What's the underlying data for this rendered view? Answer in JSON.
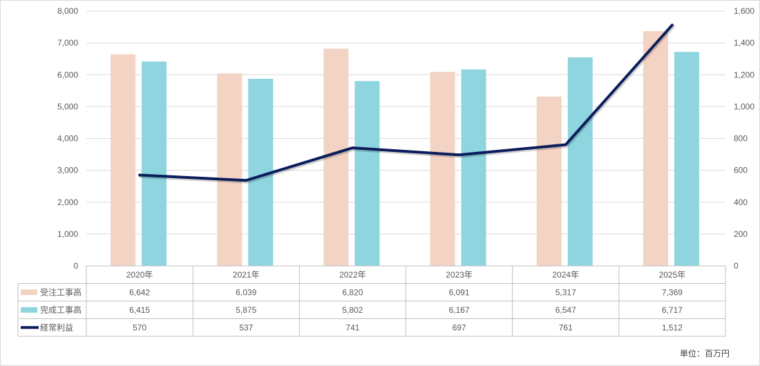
{
  "chart_data": {
    "type": "bar",
    "categories": [
      "2020年",
      "2021年",
      "2022年",
      "2023年",
      "2024年",
      "2025年"
    ],
    "series": [
      {
        "name": "受注工事高",
        "type": "bar",
        "axis": "left",
        "color": "#F2D3C4",
        "values": [
          6642,
          6039,
          6820,
          6091,
          5317,
          7369
        ],
        "display": [
          "6,642",
          "6,039",
          "6,820",
          "6,091",
          "5,317",
          "7,369"
        ]
      },
      {
        "name": "完成工事高",
        "type": "bar",
        "axis": "left",
        "color": "#8ED5DF",
        "values": [
          6415,
          5875,
          5802,
          6167,
          6547,
          6717
        ],
        "display": [
          "6,415",
          "5,875",
          "5,802",
          "6,167",
          "6,547",
          "6,717"
        ]
      },
      {
        "name": "経常利益",
        "type": "line",
        "axis": "right",
        "color": "#0B1E5B",
        "values": [
          570,
          537,
          741,
          697,
          761,
          1512
        ],
        "display": [
          "570",
          "537",
          "741",
          "697",
          "761",
          "1,512"
        ]
      }
    ],
    "y_left": {
      "ylim": [
        0,
        8000
      ],
      "ticks": [
        "0",
        "1,000",
        "2,000",
        "3,000",
        "4,000",
        "5,000",
        "6,000",
        "7,000",
        "8,000"
      ]
    },
    "y_right": {
      "ylim": [
        0,
        1600
      ],
      "ticks": [
        "0",
        "200",
        "400",
        "600",
        "800",
        "1,000",
        "1,200",
        "1,400",
        "1,600"
      ]
    },
    "grid": true,
    "legend": "data-table",
    "unit_label": "単位：百万円"
  }
}
